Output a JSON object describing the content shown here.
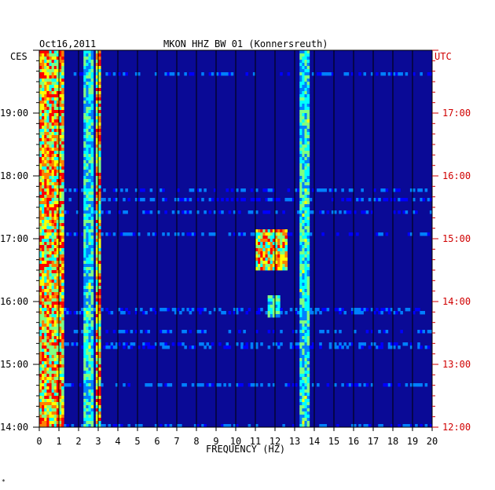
{
  "chart_data": {
    "type": "heatmap",
    "date": "Oct16,2011",
    "title": "MKON HHZ BW 01 (Konnersreuth)",
    "xlabel": "FREQUENCY (HZ)",
    "x_range": [
      0,
      20
    ],
    "x_ticks": [
      "0",
      "1",
      "2",
      "3",
      "4",
      "5",
      "6",
      "7",
      "8",
      "9",
      "10",
      "11",
      "12",
      "13",
      "14",
      "15",
      "16",
      "17",
      "18",
      "19",
      "20"
    ],
    "left_axis_label": "CES",
    "right_axis_label": "UTC",
    "left_ticks": [
      "19:00",
      "18:00",
      "17:00",
      "16:00",
      "15:00",
      "14:00"
    ],
    "right_ticks": [
      "17:00",
      "16:00",
      "15:00",
      "14:00",
      "13:00",
      "12:00"
    ],
    "time_range_left": [
      "14:00",
      "20:00"
    ],
    "time_range_right": [
      "12:00",
      "18:00"
    ],
    "colormap": [
      "#00008b",
      "#0000ff",
      "#0080ff",
      "#00ffff",
      "#80ff80",
      "#ffff00",
      "#ff8000",
      "#ff0000"
    ],
    "background_color": "#0a0a96",
    "tick_color_left": "#000000",
    "tick_color_right": "#d00000",
    "gridlines_vertical": true,
    "features": [
      {
        "name": "low-frequency band",
        "freq_hz": [
          0.0,
          1.2
        ],
        "intensity": "high"
      },
      {
        "name": "band near 2.5 Hz",
        "freq_hz": [
          2.3,
          2.7
        ],
        "intensity": "medium"
      },
      {
        "name": "band near 3 Hz",
        "freq_hz": [
          2.9,
          3.1
        ],
        "intensity": "high"
      },
      {
        "name": "band near 13.5 Hz",
        "freq_hz": [
          13.2,
          13.7
        ],
        "intensity": "medium"
      },
      {
        "name": "burst near 12 Hz",
        "freq_hz": [
          11.0,
          12.6
        ],
        "time_ces": [
          "16:30",
          "17:10"
        ],
        "intensity": "high"
      },
      {
        "name": "burst near 12 Hz",
        "freq_hz": [
          11.6,
          12.3
        ],
        "time_ces": [
          "15:45",
          "16:05"
        ],
        "intensity": "medium"
      }
    ],
    "footer_mark": "*"
  }
}
